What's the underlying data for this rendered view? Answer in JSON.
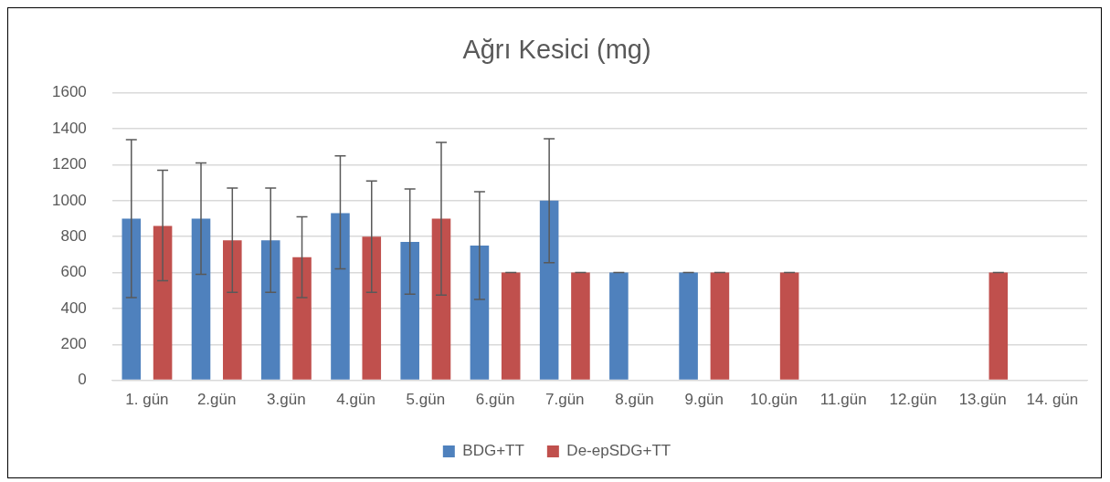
{
  "chart_data": {
    "type": "bar",
    "title": "Ağrı Kesici (mg)",
    "categories": [
      "1. gün",
      "2.gün",
      "3.gün",
      "4.gün",
      "5.gün",
      "6.gün",
      "7.gün",
      "8.gün",
      "9.gün",
      "10.gün",
      "11.gün",
      "12.gün",
      "13.gün",
      "14. gün"
    ],
    "series": [
      {
        "name": "BDG+TT",
        "color": "#4f81bd",
        "values": [
          900,
          900,
          780,
          930,
          770,
          750,
          1000,
          600,
          600,
          null,
          null,
          null,
          null,
          null
        ],
        "errors": [
          [
            460,
            1340
          ],
          [
            590,
            1210
          ],
          [
            490,
            1070
          ],
          [
            620,
            1250
          ],
          [
            480,
            1065
          ],
          [
            450,
            1050
          ],
          [
            655,
            1345
          ],
          [
            600,
            600
          ],
          [
            600,
            600
          ],
          null,
          null,
          null,
          null,
          null
        ]
      },
      {
        "name": "De-epSDG+TT",
        "color": "#c0504d",
        "values": [
          860,
          780,
          685,
          800,
          900,
          600,
          600,
          null,
          600,
          600,
          null,
          null,
          600,
          null
        ],
        "errors": [
          [
            555,
            1170
          ],
          [
            490,
            1070
          ],
          [
            460,
            910
          ],
          [
            490,
            1110
          ],
          [
            475,
            1325
          ],
          [
            600,
            600
          ],
          [
            600,
            600
          ],
          null,
          [
            600,
            600
          ],
          [
            600,
            600
          ],
          null,
          null,
          [
            600,
            600
          ],
          null
        ]
      }
    ],
    "ylim": [
      0,
      1600
    ],
    "yticks": [
      0,
      200,
      400,
      600,
      800,
      1000,
      1200,
      1400,
      1600
    ],
    "grid": "y",
    "legend": "bottom"
  }
}
